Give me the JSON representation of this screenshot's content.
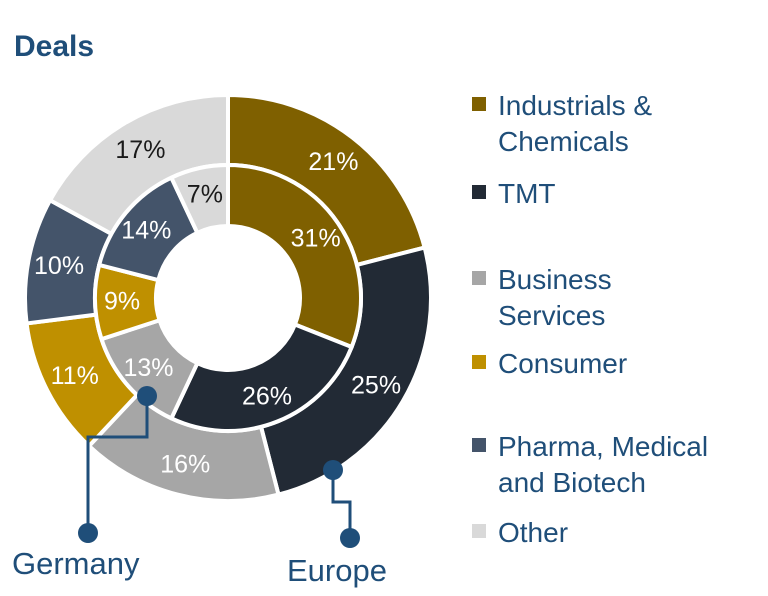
{
  "title": "Deals",
  "chart_data": {
    "type": "pie",
    "subtype": "double-donut",
    "categories": [
      "Industrials & Chemicals",
      "TMT",
      "Business Services",
      "Consumer",
      "Pharma, Medical and Biotech",
      "Other"
    ],
    "series": [
      {
        "name": "Europe",
        "ring": "outer",
        "values": [
          21,
          25,
          16,
          11,
          10,
          17
        ],
        "labels": [
          "21%",
          "25%",
          "16%",
          "11%",
          "10%",
          "17%"
        ]
      },
      {
        "name": "Germany",
        "ring": "inner",
        "values": [
          31,
          26,
          13,
          9,
          14,
          7
        ],
        "labels": [
          "31%",
          "26%",
          "13%",
          "9%",
          "14%",
          "7%"
        ]
      }
    ],
    "colors": [
      "#7f6000",
      "#222a35",
      "#a6a6a6",
      "#bf9000",
      "#44546a",
      "#d9d9d9"
    ],
    "legend_position": "right"
  },
  "legend": [
    {
      "label": "Industrials & Chemicals",
      "lines": [
        "Industrials &",
        "Chemicals"
      ],
      "color": "#7f6000"
    },
    {
      "label": "TMT",
      "lines": [
        "TMT"
      ],
      "color": "#222a35"
    },
    {
      "label": "Business Services",
      "lines": [
        "Business",
        "Services"
      ],
      "color": "#a6a6a6"
    },
    {
      "label": "Consumer",
      "lines": [
        "Consumer"
      ],
      "color": "#bf9000"
    },
    {
      "label": "Pharma, Medical and Biotech",
      "lines": [
        "Pharma, Medical",
        "and Biotech"
      ],
      "color": "#44546a"
    },
    {
      "label": "Other",
      "lines": [
        "Other"
      ],
      "color": "#d9d9d9"
    }
  ],
  "callouts": {
    "inner": "Germany",
    "outer": "Europe",
    "color": "#1f4e79"
  }
}
